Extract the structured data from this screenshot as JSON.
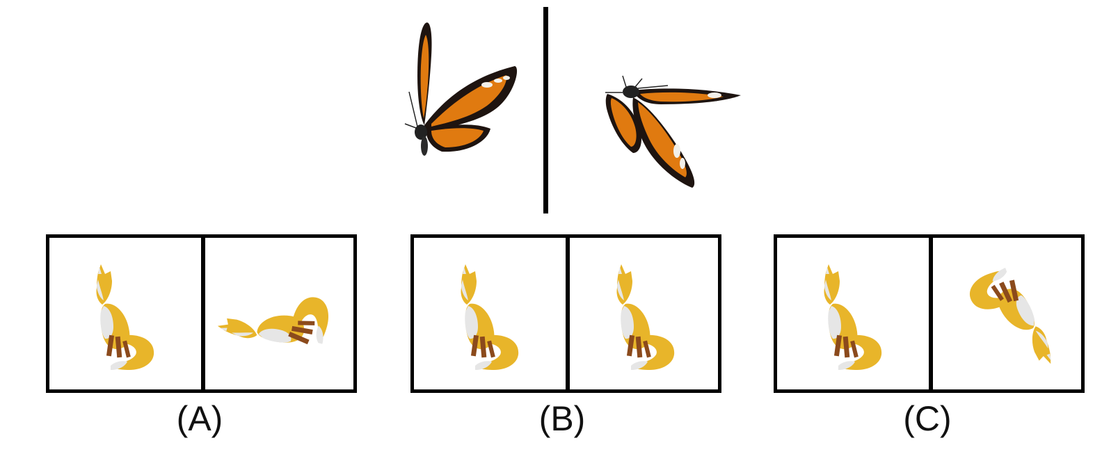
{
  "stimulus": {
    "left_object": "butterfly",
    "right_object": "butterfly"
  },
  "options": [
    {
      "label": "(A)",
      "left_object": "fox",
      "right_object": "fox"
    },
    {
      "label": "(B)",
      "left_object": "fox",
      "right_object": "fox"
    },
    {
      "label": "(C)",
      "left_object": "fox",
      "right_object": "fox"
    }
  ],
  "colors": {
    "fox_body": "#e8b52a",
    "fox_dark": "#c99416",
    "fox_white": "#e6e6e6",
    "fox_legs": "#8b4a1c",
    "wing_orange": "#e07a10",
    "wing_black": "#1e1410",
    "wing_spot": "#f2f0ea"
  }
}
